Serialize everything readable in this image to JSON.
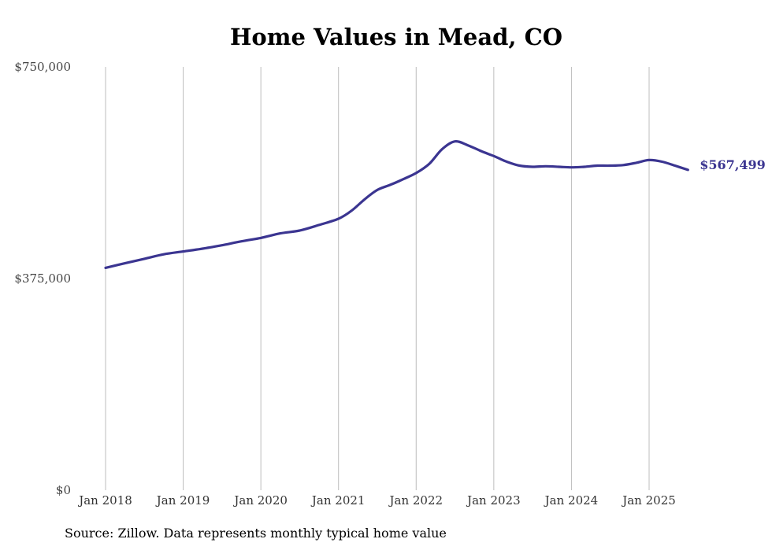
{
  "chart_data": {
    "type": "line",
    "title": "Home Values in Mead, CO",
    "source": "Source: Zillow. Data represents monthly typical home value",
    "ylim": [
      0,
      750000
    ],
    "y_ticks": [
      {
        "value": 0,
        "label": "$0"
      },
      {
        "value": 375000,
        "label": "$375,000"
      },
      {
        "value": 750000,
        "label": "$750,000"
      }
    ],
    "x_ticks": [
      {
        "value": "2018-01",
        "label": "Jan 2018"
      },
      {
        "value": "2019-01",
        "label": "Jan 2019"
      },
      {
        "value": "2020-01",
        "label": "Jan 2020"
      },
      {
        "value": "2021-01",
        "label": "Jan 2021"
      },
      {
        "value": "2022-01",
        "label": "Jan 2022"
      },
      {
        "value": "2023-01",
        "label": "Jan 2023"
      },
      {
        "value": "2024-01",
        "label": "Jan 2024"
      },
      {
        "value": "2025-01",
        "label": "Jan 2025"
      }
    ],
    "grid": "vertical",
    "series": [
      {
        "color": "#3b3591",
        "end_label": "$567,499",
        "x": [
          "2018-01",
          "2018-04",
          "2018-07",
          "2018-10",
          "2019-01",
          "2019-04",
          "2019-07",
          "2019-10",
          "2020-01",
          "2020-04",
          "2020-07",
          "2020-10",
          "2021-01",
          "2021-03",
          "2021-05",
          "2021-07",
          "2021-09",
          "2021-11",
          "2022-01",
          "2022-03",
          "2022-05",
          "2022-07",
          "2022-09",
          "2022-11",
          "2023-01",
          "2023-03",
          "2023-05",
          "2023-07",
          "2023-09",
          "2023-11",
          "2024-01",
          "2024-03",
          "2024-05",
          "2024-07",
          "2024-09",
          "2024-11",
          "2025-01",
          "2025-03",
          "2025-05",
          "2025-07"
        ],
        "values": [
          394000,
          402000,
          410000,
          418000,
          423000,
          428000,
          434000,
          441000,
          447000,
          455000,
          460000,
          470000,
          481000,
          495000,
          515000,
          532000,
          541000,
          551000,
          562000,
          578000,
          604000,
          618000,
          611000,
          601000,
          592000,
          582000,
          575000,
          573000,
          574000,
          573000,
          572000,
          573000,
          575000,
          575000,
          576000,
          580000,
          585000,
          582000,
          575000,
          567499
        ]
      }
    ]
  }
}
